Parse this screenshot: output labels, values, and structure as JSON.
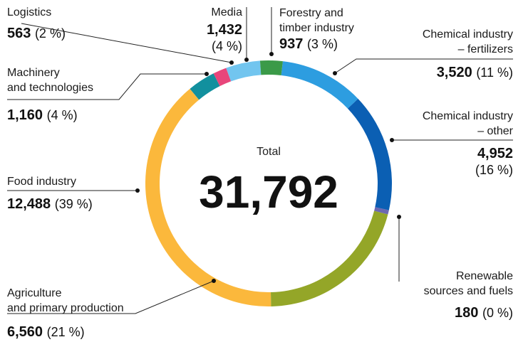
{
  "chart_data": {
    "type": "donut",
    "categories": [
      "Forestry and\ntimber industry",
      "Chemical industry\n– fertilizers",
      "Chemical industry\n– other",
      "Renewable\nsources and fuels",
      "Agriculture\nand primary production",
      "Food industry",
      "Machinery\nand technologies",
      "Logistics",
      "Media"
    ],
    "values": [
      937,
      3520,
      4952,
      180,
      6560,
      12488,
      1160,
      563,
      1432
    ],
    "value_labels": [
      "937",
      "3,520",
      "4,952",
      "180",
      "6,560",
      "12,488",
      "1,160",
      "563",
      "1,432"
    ],
    "share_labels": [
      "(3 %)",
      "(11 %)",
      "(16 %)",
      "(0 %)",
      "(21 %)",
      "(39 %)",
      "(4 %)",
      "(2 %)",
      "(4 %)"
    ],
    "colors": [
      "#3b9a48",
      "#2d9de0",
      "#0b5fb3",
      "#6c68b1",
      "#94a628",
      "#fbb83c",
      "#12909e",
      "#e8467b",
      "#72c5ef"
    ],
    "total_caption": "Total",
    "total": 31792,
    "total_label": "31,792"
  }
}
